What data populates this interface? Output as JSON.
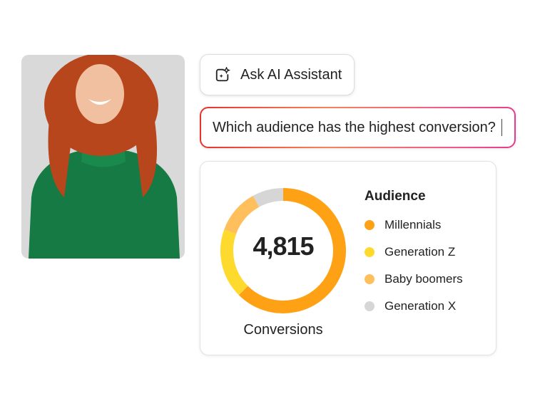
{
  "assistant_button": {
    "label": "Ask AI Assistant",
    "icon": "ai-sparkle-icon"
  },
  "prompt": {
    "value": "Which audience has the highest conversion?"
  },
  "chart_data": {
    "type": "pie",
    "variant": "donut",
    "center_value": "4,815",
    "center_label": "Conversions",
    "legend_title": "Audience",
    "legend_position": "right",
    "categories": [
      "Millennials",
      "Generation Z",
      "Baby boomers",
      "Generation X"
    ],
    "values": [
      62.5,
      18,
      11.5,
      8
    ],
    "colors": [
      "#FFA114",
      "#FFDA2E",
      "#FFBF5C",
      "#D6D6D6"
    ]
  }
}
